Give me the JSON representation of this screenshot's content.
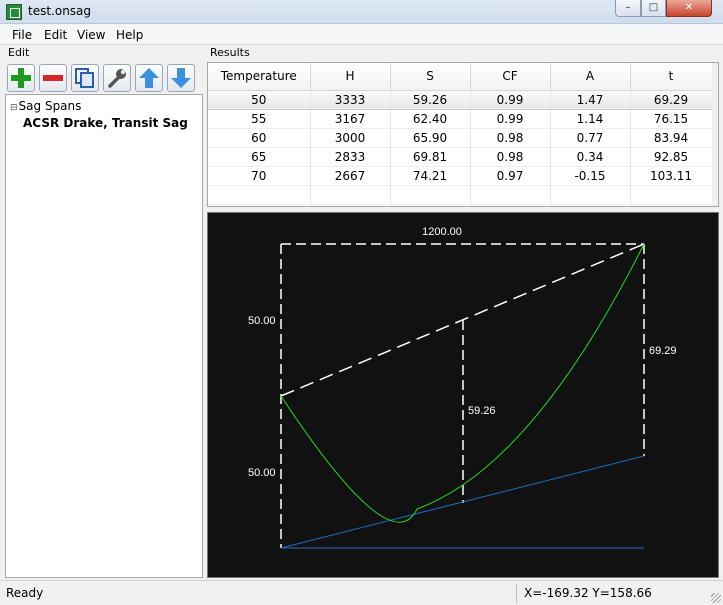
{
  "window": {
    "title": "test.onsag",
    "controls": {
      "minimize": "–",
      "maximize": "□",
      "close": "✕"
    }
  },
  "menu": [
    "File",
    "Edit",
    "View",
    "Help"
  ],
  "left_pane": {
    "header": "Edit",
    "toolbar": [
      {
        "name": "add",
        "icon": "plus-icon",
        "color": "#1f9a1f"
      },
      {
        "name": "remove",
        "icon": "minus-icon",
        "color": "#d6262a"
      },
      {
        "name": "copy",
        "icon": "copy-icon",
        "color": "#2a5db0"
      },
      {
        "name": "edit",
        "icon": "wrench-icon",
        "color": "#555555"
      },
      {
        "name": "move-up",
        "icon": "arrow-up-icon",
        "color": "#3a8fe0"
      },
      {
        "name": "move-down",
        "icon": "arrow-down-icon",
        "color": "#3a8fe0"
      }
    ],
    "tree": {
      "root": "Sag Spans",
      "expander": "⊟",
      "child": "ACSR Drake, Transit Sag"
    }
  },
  "results": {
    "header": "Results",
    "columns": [
      "Temperature",
      "H",
      "S",
      "CF",
      "A",
      "t"
    ],
    "rows": [
      [
        "50",
        "3333",
        "59.26",
        "0.99",
        "1.47",
        "69.29"
      ],
      [
        "55",
        "3167",
        "62.40",
        "0.99",
        "1.14",
        "76.15"
      ],
      [
        "60",
        "3000",
        "65.90",
        "0.98",
        "0.77",
        "83.94"
      ],
      [
        "65",
        "2833",
        "69.81",
        "0.98",
        "0.34",
        "92.85"
      ],
      [
        "70",
        "2667",
        "74.21",
        "0.97",
        "-0.15",
        "103.11"
      ]
    ],
    "selected_row": 0
  },
  "plot": {
    "background": "#111111",
    "colors": {
      "guide": "#ffffff",
      "curve": "#22dd22",
      "tangent": "#1a6fc0"
    },
    "labels": {
      "span": "1200.00",
      "left_upper": "50.00",
      "left_lower": "50.00",
      "sag": "59.26",
      "right": "69.29"
    }
  },
  "status": {
    "text": "Ready",
    "coords": "X=-169.32  Y=158.66"
  }
}
